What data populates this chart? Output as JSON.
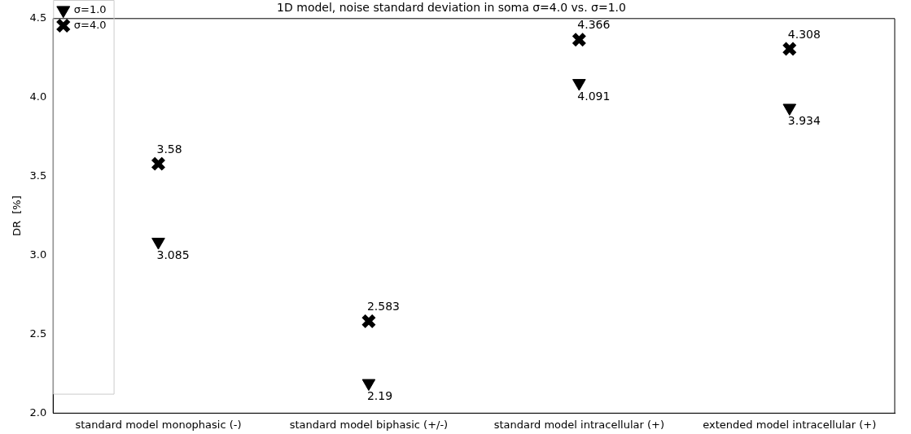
{
  "chart_data": {
    "type": "scatter",
    "title": "1D model, noise standard deviation in soma σ=4.0 vs. σ=1.0",
    "ylabel": "DR  [%]",
    "categories": [
      "standard model monophasic (-)",
      "standard model biphasic (+/-)",
      "standard model intracellular (+)",
      "extended model intracellular (+)"
    ],
    "series": [
      {
        "name": "σ=1.0",
        "color": "#000000",
        "marker": "triangle",
        "values": [
          3.085,
          2.19,
          4.091,
          3.934
        ]
      },
      {
        "name": "σ=4.0",
        "color": "#000000",
        "marker": "cross",
        "values": [
          3.58,
          2.583,
          4.366,
          4.308
        ]
      }
    ],
    "ylim": [
      2.0,
      4.5
    ],
    "yticks": [
      {
        "value": 2.0,
        "label": "2.0"
      },
      {
        "value": 2.5,
        "label": "2.5"
      },
      {
        "value": 3.0,
        "label": "3.0"
      },
      {
        "value": 3.5,
        "label": "3.5"
      },
      {
        "value": 4.0,
        "label": "4.0"
      },
      {
        "value": 4.5,
        "label": "4.5"
      }
    ],
    "grid": false,
    "legend": "top left",
    "data_labels": true
  }
}
